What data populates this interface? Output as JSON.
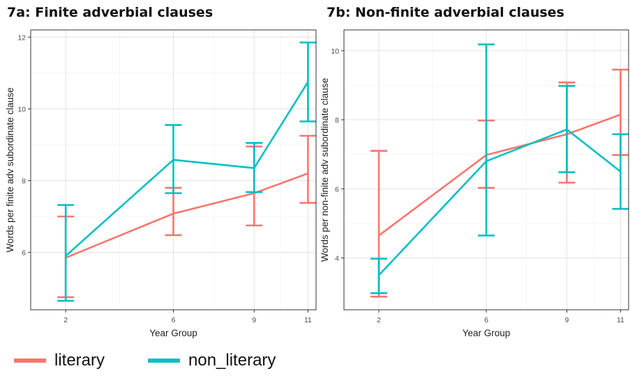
{
  "chart_data": [
    {
      "type": "line",
      "title": "7a: Finite adverbial clauses",
      "xlabel": "Year Group",
      "ylabel": "Words per finite adv subordinate clause",
      "x": [
        2,
        6,
        9,
        11
      ],
      "x_ticks": [
        "2",
        "6",
        "9",
        "11"
      ],
      "y_ticks": [
        "6",
        "8",
        "10",
        "12"
      ],
      "xlim": [
        0.7,
        11.3
      ],
      "ylim": [
        4.4,
        12.2
      ],
      "grid": true,
      "series": [
        {
          "name": "literary",
          "color": "#F8766D",
          "values": [
            5.85,
            7.08,
            7.65,
            8.2
          ],
          "err_low": [
            4.75,
            6.48,
            6.75,
            7.38
          ],
          "err_high": [
            7.0,
            7.8,
            8.95,
            9.25
          ]
        },
        {
          "name": "non_literary",
          "color": "#00BFC4",
          "values": [
            5.9,
            8.58,
            8.35,
            10.75
          ],
          "err_low": [
            4.65,
            7.65,
            7.68,
            9.65
          ],
          "err_high": [
            7.32,
            9.55,
            9.05,
            11.85
          ]
        }
      ]
    },
    {
      "type": "line",
      "title": "7b: Non-finite adverbial clauses",
      "xlabel": "Year Group",
      "ylabel": "Words per non-finite adv subordinate clause",
      "x": [
        2,
        6,
        9,
        11
      ],
      "x_ticks": [
        "2",
        "6",
        "9",
        "11"
      ],
      "y_ticks": [
        "4",
        "6",
        "8",
        "10"
      ],
      "xlim": [
        0.7,
        11.3
      ],
      "ylim": [
        2.5,
        10.6
      ],
      "grid": true,
      "series": [
        {
          "name": "literary",
          "color": "#F8766D",
          "values": [
            4.65,
            6.98,
            7.58,
            8.15
          ],
          "err_low": [
            2.88,
            6.03,
            6.18,
            6.98
          ],
          "err_high": [
            7.1,
            7.98,
            9.08,
            9.45
          ]
        },
        {
          "name": "non_literary",
          "color": "#00BFC4",
          "values": [
            3.5,
            6.8,
            7.72,
            6.5
          ],
          "err_low": [
            2.98,
            4.65,
            6.48,
            5.42
          ],
          "err_high": [
            3.98,
            10.18,
            8.98,
            7.58
          ]
        }
      ]
    }
  ],
  "legend": {
    "items": [
      {
        "label": "literary",
        "color": "#F8766D"
      },
      {
        "label": "non_literary",
        "color": "#00BFC4"
      }
    ]
  }
}
